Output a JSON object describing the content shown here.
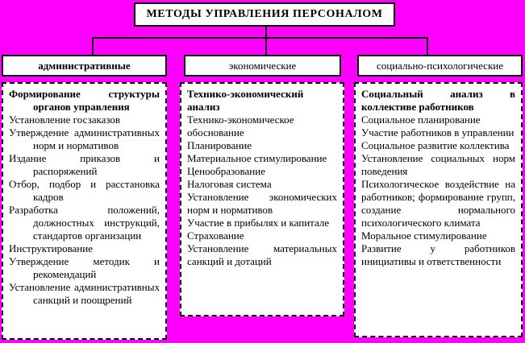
{
  "title": "МЕТОДЫ УПРАВЛЕНИЯ ПЕРСОНАЛОМ",
  "colors": {
    "background": "#ff00ff",
    "box_background": "#ffffff",
    "border": "#000000",
    "text": "#000000"
  },
  "columns": [
    {
      "header": "административные",
      "items": [
        {
          "text": "Формирование структуры органов управления",
          "bold": true
        },
        {
          "text": "Установление госзаказов",
          "bold": false
        },
        {
          "text": "Утверждение административных норм и нормативов",
          "bold": false
        },
        {
          "text": "Издание приказов и распоряжений",
          "bold": false
        },
        {
          "text": "Отбор, подбор и расстановка кадров",
          "bold": false
        },
        {
          "text": "Разработка положений, должностных инструкций, стандартов организации",
          "bold": false
        },
        {
          "text": "Инструктирование",
          "bold": false
        },
        {
          "text": "Утверждение методик и рекомендаций",
          "bold": false
        },
        {
          "text": "Установление административных санкций и поощрений",
          "bold": false
        }
      ]
    },
    {
      "header": "экономические",
      "items": [
        {
          "text": "Технико-экономический анализ",
          "bold": true
        },
        {
          "text": "Технико-экономическое обоснование",
          "bold": false
        },
        {
          "text": "Планирование",
          "bold": false
        },
        {
          "text": "Материальное стимулирование",
          "bold": false
        },
        {
          "text": "Ценообразование",
          "bold": false
        },
        {
          "text": "Налоговая система",
          "bold": false
        },
        {
          "text": "Установление экономических норм и нормативов",
          "bold": false
        },
        {
          "text": "Участие в прибылях и капитале",
          "bold": false
        },
        {
          "text": "Страхование",
          "bold": false
        },
        {
          "text": "Установление материальных санкций и дотаций",
          "bold": false
        }
      ]
    },
    {
      "header": "социально-психологические",
      "items": [
        {
          "text": "Социальный анализ в коллективе работников",
          "bold": true
        },
        {
          "text": "Социальное планирование",
          "bold": false
        },
        {
          "text": "Участие работников в управлении",
          "bold": false
        },
        {
          "text": "Социальное развитие коллектива",
          "bold": false
        },
        {
          "text": "Установление социальных норм поведения",
          "bold": false
        },
        {
          "text": "Психологическое воздействие на работников; формирование групп, создание нормального психологического климата",
          "bold": false
        },
        {
          "text": "Моральное стимулирование",
          "bold": false
        },
        {
          "text": "Развитие у работников инициативы и ответственности",
          "bold": false
        }
      ]
    }
  ]
}
